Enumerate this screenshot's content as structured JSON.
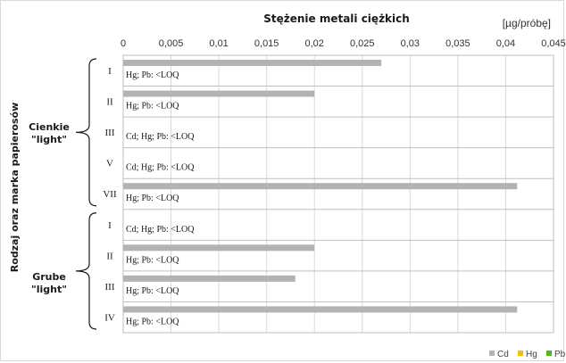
{
  "chart_data": {
    "type": "bar",
    "orientation": "horizontal",
    "title": "Stężenie metali ciężkich",
    "unit": "[µg/próbę]",
    "ylabel": "Rodzaj oraz marka papierosów",
    "xlim": [
      0,
      0.045
    ],
    "x_ticks": [
      "0",
      "0,005",
      "0,01",
      "0,015",
      "0,02",
      "0,025",
      "0,03",
      "0,035",
      "0,04",
      "0,045"
    ],
    "grid": true,
    "legend_position": "bottom-right",
    "groups": [
      {
        "label": "Cienkie \"light\"",
        "categories": [
          "I",
          "II",
          "III",
          "V",
          "VII"
        ]
      },
      {
        "label": "Grube \"light\"",
        "categories": [
          "I",
          "II",
          "III",
          "IV"
        ]
      }
    ],
    "categories": [
      "I",
      "II",
      "III",
      "V",
      "VII",
      "I",
      "II",
      "III",
      "IV"
    ],
    "series": [
      {
        "name": "Cd",
        "color": "#b3b3b3",
        "values": [
          0.027,
          0.02,
          null,
          null,
          0.0412,
          null,
          0.02,
          0.018,
          0.0412
        ]
      },
      {
        "name": "Hg",
        "color": "#f5c400",
        "values": [
          null,
          null,
          null,
          null,
          null,
          null,
          null,
          null,
          null
        ]
      },
      {
        "name": "Pb",
        "color": "#4cbb17",
        "values": [
          null,
          null,
          null,
          null,
          null,
          null,
          null,
          null,
          null
        ]
      }
    ],
    "annotations": [
      "Hg; Pb: <LOQ",
      "Hg; Pb: <LOQ",
      "Cd; Hg; Pb: <LOQ",
      "Cd; Hg; Pb: <LOQ",
      "Hg; Pb: <LOQ",
      "Cd; Hg; Pb: <LOQ",
      "Hg; Pb: <LOQ",
      "Hg; Pb: <LOQ",
      "Hg; Pb: <LOQ"
    ]
  }
}
